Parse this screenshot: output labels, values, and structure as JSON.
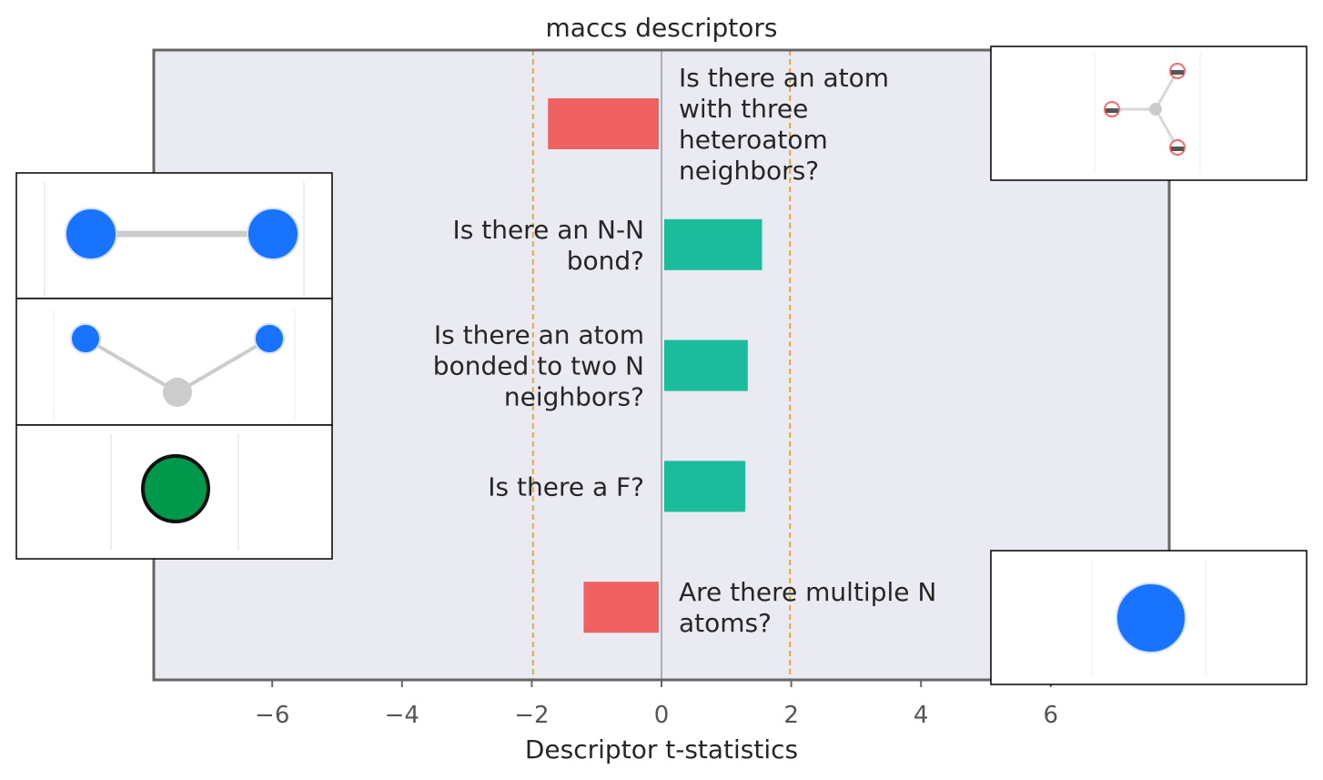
{
  "chart_data": {
    "type": "bar",
    "orientation": "horizontal",
    "title": "maccs descriptors",
    "xlabel": "Descriptor t-statistics",
    "ylabel": "",
    "xlim": [
      -7.9,
      7.9
    ],
    "xticks": [
      -6,
      -4,
      -2,
      0,
      2,
      4,
      6
    ],
    "xtick_labels": [
      "−6",
      "−4",
      "−2",
      "0",
      "2",
      "4",
      "6"
    ],
    "thresholds": [
      -1.98,
      1.98
    ],
    "categories": [
      "Is there an atom with three heteroatom neighbors?",
      "Is there an N-N bond?",
      "Is there an atom bonded to two N neighbors?",
      "Is there a F?",
      "Are there multiple N atoms?"
    ],
    "label_lines": [
      [
        "Is there an atom",
        "with three",
        "heteroatom",
        "neighbors?"
      ],
      [
        "Is there an N-N",
        "bond?"
      ],
      [
        "Is there an atom",
        "bonded to two N",
        "neighbors?"
      ],
      [
        "Is there a F?"
      ],
      [
        "Are there multiple N",
        "atoms?"
      ]
    ],
    "values": [
      -1.75,
      1.55,
      1.33,
      1.29,
      -1.2
    ],
    "colors": {
      "positive": "#1abc9c",
      "negative": "#f06262",
      "threshold": "#f0a030",
      "plot_background": "#eaeaf2",
      "frame": "#666666",
      "zero_line": "#999999"
    },
    "insets": [
      {
        "molecule": "central-atom-with-three-heteroatom-neighbors",
        "colors": [
          "#cccccc",
          "#ff4444"
        ]
      },
      {
        "molecule": "nitrogen-nitrogen-bond",
        "colors": [
          "#1874ff",
          "#cccccc"
        ]
      },
      {
        "molecule": "atom-bonded-to-two-nitrogens",
        "colors": [
          "#1874ff",
          "#cccccc"
        ]
      },
      {
        "molecule": "fluorine-atom",
        "colors": [
          "#00994c",
          "#111111"
        ]
      },
      {
        "molecule": "nitrogen-atom",
        "colors": [
          "#1874ff"
        ]
      }
    ]
  }
}
